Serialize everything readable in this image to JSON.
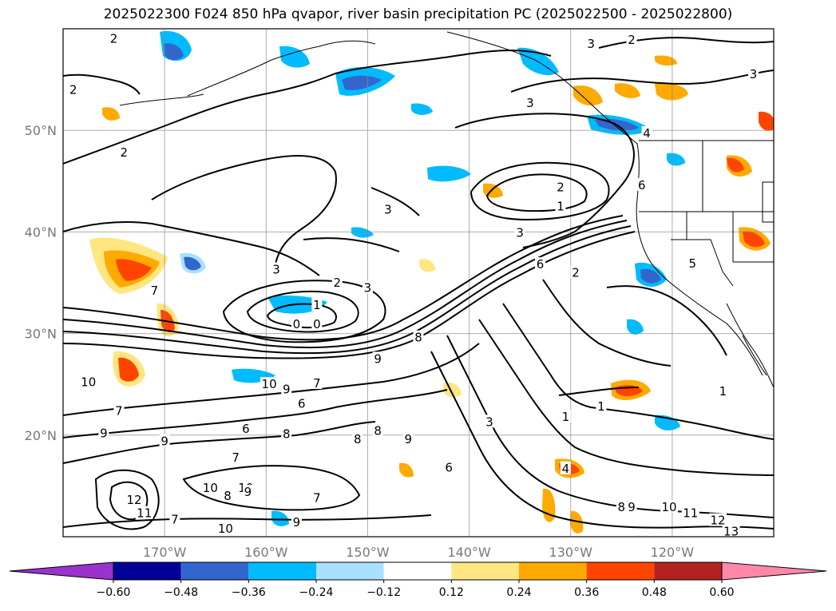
{
  "title": "2025022300 F024 850 hPa qvapor, river basin precipitation PC (2025022500 - 2025022800)",
  "map": {
    "lon_range": [
      -180,
      -110
    ],
    "lat_range": [
      10,
      60
    ],
    "gridlines": true,
    "lat_ticks": [
      {
        "lat": 50,
        "label": "50°N"
      },
      {
        "lat": 40,
        "label": "40°N"
      },
      {
        "lat": 30,
        "label": "30°N"
      },
      {
        "lat": 20,
        "label": "20°N"
      }
    ],
    "lon_ticks": [
      {
        "lon": -170,
        "label": "170°W"
      },
      {
        "lon": -160,
        "label": "160°W"
      },
      {
        "lon": -150,
        "label": "150°W"
      },
      {
        "lon": -140,
        "label": "140°W"
      },
      {
        "lon": -130,
        "label": "130°W"
      },
      {
        "lon": -120,
        "label": "120°W"
      }
    ],
    "contour_labels": [
      {
        "text": "2",
        "lon": -175,
        "lat": 59
      },
      {
        "text": "2",
        "lon": -179,
        "lat": 54
      },
      {
        "text": "2",
        "lon": -174,
        "lat": 47.8
      },
      {
        "text": "3",
        "lon": -150,
        "lat": 34.5
      },
      {
        "text": "3",
        "lon": -159,
        "lat": 36.3
      },
      {
        "text": "2",
        "lon": -153,
        "lat": 35
      },
      {
        "text": "1",
        "lon": -155,
        "lat": 32.8
      },
      {
        "text": "0",
        "lon": -157,
        "lat": 30.9
      },
      {
        "text": "0",
        "lon": -155,
        "lat": 30.9
      },
      {
        "text": "3",
        "lon": -148,
        "lat": 42.2
      },
      {
        "text": "3",
        "lon": -134,
        "lat": 52.7
      },
      {
        "text": "3",
        "lon": -128,
        "lat": 58.5
      },
      {
        "text": "2",
        "lon": -124,
        "lat": 58.9
      },
      {
        "text": "3",
        "lon": -112,
        "lat": 55.5
      },
      {
        "text": "4",
        "lon": -122.5,
        "lat": 49.7
      },
      {
        "text": "2",
        "lon": -131,
        "lat": 44.4
      },
      {
        "text": "1",
        "lon": -131,
        "lat": 42.5
      },
      {
        "text": "3",
        "lon": -135,
        "lat": 39.9
      },
      {
        "text": "6",
        "lon": -133,
        "lat": 36.8
      },
      {
        "text": "2",
        "lon": -129.5,
        "lat": 36
      },
      {
        "text": "6",
        "lon": -123,
        "lat": 44.6
      },
      {
        "text": "5",
        "lon": -118,
        "lat": 36.9
      },
      {
        "text": "1",
        "lon": -115,
        "lat": 24.3
      },
      {
        "text": "8",
        "lon": -145,
        "lat": 29.6
      },
      {
        "text": "9",
        "lon": -149,
        "lat": 27.5
      },
      {
        "text": "7",
        "lon": -171,
        "lat": 34.2
      },
      {
        "text": "10",
        "lon": -177.5,
        "lat": 25.2
      },
      {
        "text": "10",
        "lon": -159.7,
        "lat": 25
      },
      {
        "text": "9",
        "lon": -158,
        "lat": 24.5
      },
      {
        "text": "7",
        "lon": -155,
        "lat": 25.1
      },
      {
        "text": "6",
        "lon": -156.5,
        "lat": 23.1
      },
      {
        "text": "7",
        "lon": -174.5,
        "lat": 22.4
      },
      {
        "text": "9",
        "lon": -176,
        "lat": 20.2
      },
      {
        "text": "6",
        "lon": -162,
        "lat": 20.6
      },
      {
        "text": "8",
        "lon": -158,
        "lat": 20.1
      },
      {
        "text": "9",
        "lon": -170,
        "lat": 19.4
      },
      {
        "text": "8",
        "lon": -151,
        "lat": 19.6
      },
      {
        "text": "8",
        "lon": -149,
        "lat": 20.4
      },
      {
        "text": "9",
        "lon": -146,
        "lat": 19.6
      },
      {
        "text": "7",
        "lon": -163,
        "lat": 17.8
      },
      {
        "text": "6",
        "lon": -142,
        "lat": 16.8
      },
      {
        "text": "3",
        "lon": -138,
        "lat": 21.3
      },
      {
        "text": "1",
        "lon": -130.5,
        "lat": 21.8
      },
      {
        "text": "1",
        "lon": -127,
        "lat": 22.8
      },
      {
        "text": "4",
        "lon": -130.5,
        "lat": 16.7
      },
      {
        "text": "10",
        "lon": -165.5,
        "lat": 14.8
      },
      {
        "text": "10",
        "lon": -162,
        "lat": 14.8
      },
      {
        "text": "8",
        "lon": -163.8,
        "lat": 14
      },
      {
        "text": "9",
        "lon": -161.8,
        "lat": 14.4
      },
      {
        "text": "7",
        "lon": -155,
        "lat": 13.8
      },
      {
        "text": "12",
        "lon": -173,
        "lat": 13.6
      },
      {
        "text": "11",
        "lon": -172,
        "lat": 12.3
      },
      {
        "text": "10",
        "lon": -164,
        "lat": 10.8
      },
      {
        "text": "7",
        "lon": -169,
        "lat": 11.7
      },
      {
        "text": "9",
        "lon": -157,
        "lat": 11.4
      },
      {
        "text": "8",
        "lon": -125,
        "lat": 12.9
      },
      {
        "text": "9",
        "lon": -124,
        "lat": 12.9
      },
      {
        "text": "10",
        "lon": -120.3,
        "lat": 12.9
      },
      {
        "text": "11",
        "lon": -118.2,
        "lat": 12.3
      },
      {
        "text": "12",
        "lon": -115.5,
        "lat": 11.6
      },
      {
        "text": "13",
        "lon": -114.2,
        "lat": 10.5
      }
    ]
  },
  "colorbar": {
    "colors": [
      "#9933cc",
      "#000099",
      "#3366cc",
      "#00bbff",
      "#aae0ff",
      "#ffffff",
      "#ffe680",
      "#ffaa00",
      "#ff4400",
      "#b22222",
      "#ff88aa"
    ],
    "labels": [
      "−0.60",
      "−0.48",
      "−0.36",
      "−0.24",
      "−0.12",
      "0.12",
      "0.24",
      "0.36",
      "0.48",
      "0.60"
    ]
  }
}
